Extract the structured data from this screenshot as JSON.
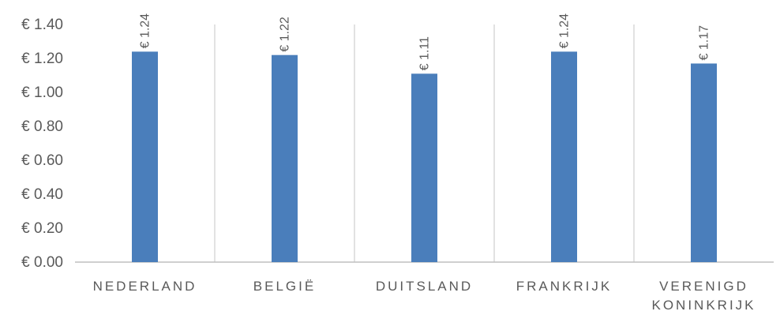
{
  "chart_data": {
    "type": "bar",
    "categories": [
      "NEDERLAND",
      "BELGIË",
      "DUITSLAND",
      "FRANKRIJK",
      "VERENIGD KONINKRIJK"
    ],
    "category_label_lines": [
      [
        "NEDERLAND"
      ],
      [
        "BELGIË"
      ],
      [
        "DUITSLAND"
      ],
      [
        "FRANKRIJK"
      ],
      [
        "VERENIGD",
        "KONINKRIJK"
      ]
    ],
    "values": [
      1.24,
      1.22,
      1.11,
      1.24,
      1.17
    ],
    "data_labels": [
      "€ 1.24",
      "€ 1.22",
      "€ 1.11",
      "€ 1.24",
      "€ 1.17"
    ],
    "y_ticks": [
      0,
      0.2,
      0.4,
      0.6,
      0.8,
      1.0,
      1.2,
      1.4
    ],
    "y_tick_labels": [
      "€ 0.00",
      "€ 0.20",
      "€ 0.40",
      "€ 0.60",
      "€ 0.80",
      "€ 1.00",
      "€ 1.20",
      "€ 1.40"
    ],
    "ylim": [
      0,
      1.4
    ],
    "title": "",
    "xlabel": "",
    "ylabel": "",
    "grid": "vertical category separators",
    "legend": "none",
    "colors": {
      "bar": "#4a7ebb",
      "axis_line": "#bfbfbf",
      "separator": "#d9d9d9",
      "text": "#595959"
    }
  }
}
